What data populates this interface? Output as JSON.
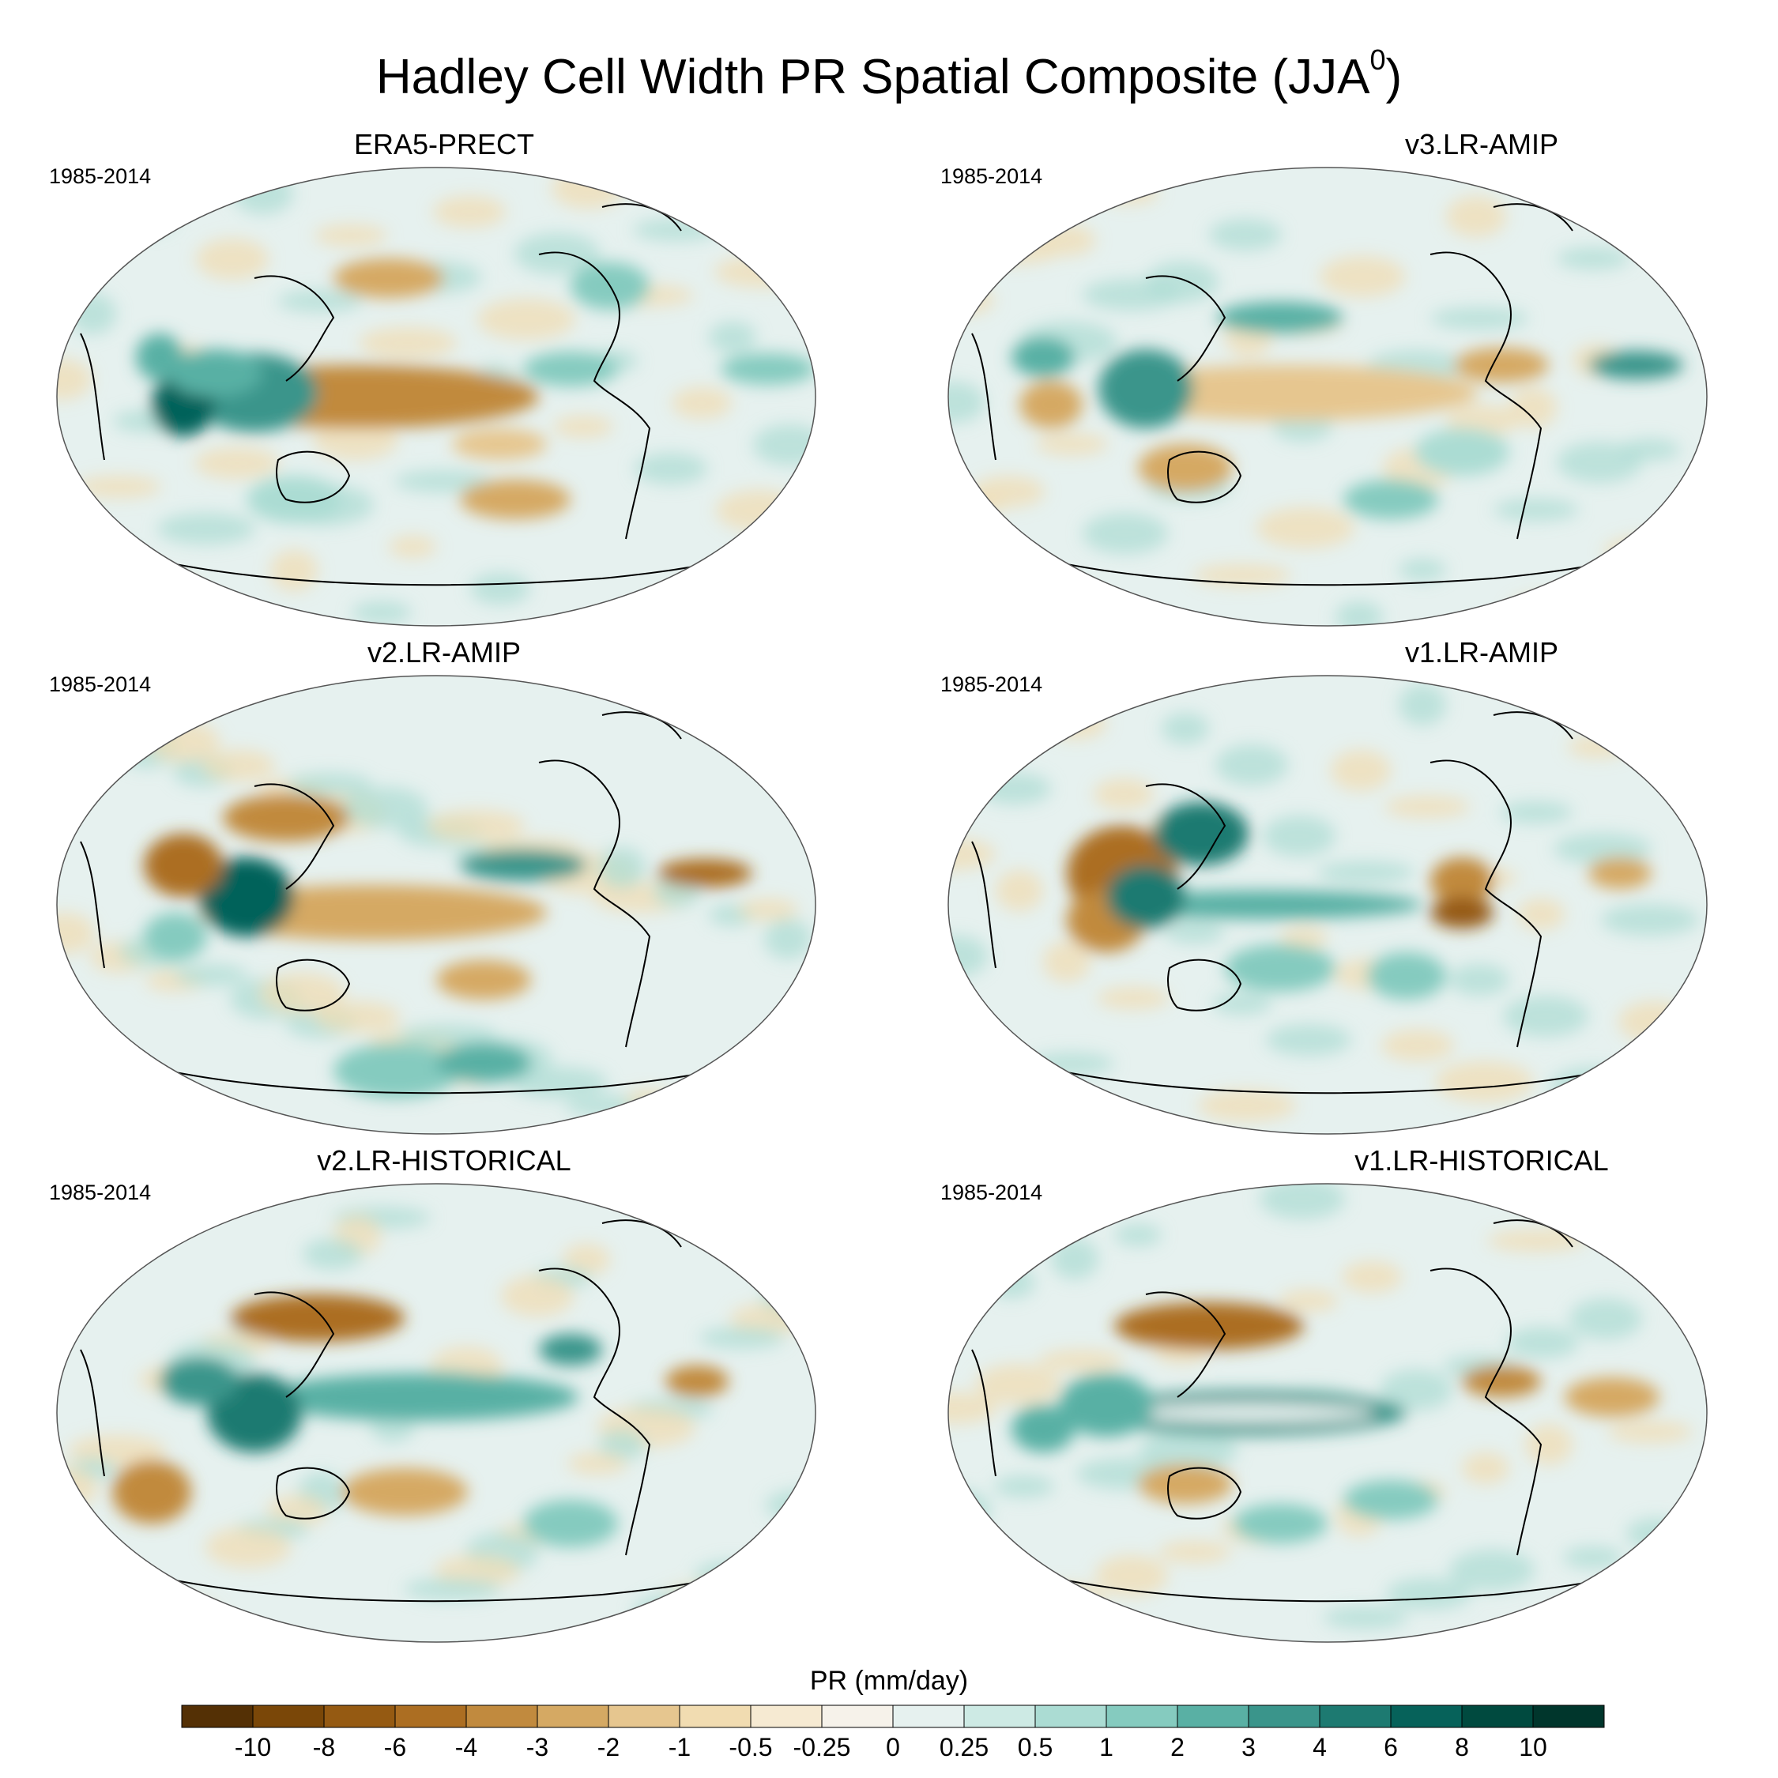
{
  "figure": {
    "title": "Hadley Cell Width PR Spatial Composite (JJA",
    "title_sup": "0",
    "title_suffix": ")"
  },
  "panels": [
    {
      "title": "ERA5-PRECT",
      "period": "1985-2014"
    },
    {
      "title": "v3.LR-AMIP",
      "period": "1985-2014"
    },
    {
      "title": "v2.LR-AMIP",
      "period": "1985-2014"
    },
    {
      "title": "v1.LR-AMIP",
      "period": "1985-2014"
    },
    {
      "title": "v2.LR-HISTORICAL",
      "period": "1985-2014"
    },
    {
      "title": "v1.LR-HISTORICAL",
      "period": "1985-2014"
    }
  ],
  "colorbar": {
    "label": "PR (mm/day)",
    "levels": [
      "-10",
      "-8",
      "-6",
      "-4",
      "-3",
      "-2",
      "-1",
      "-0.5",
      "-0.25",
      "0",
      "0.25",
      "0.5",
      "1",
      "2",
      "3",
      "4",
      "6",
      "8",
      "10"
    ],
    "colors": [
      "#543005",
      "#7a4708",
      "#955a12",
      "#ac6e22",
      "#c18a3e",
      "#d5a963",
      "#e6c68f",
      "#f1dcb1",
      "#f6ead2",
      "#f6f2ea",
      "#e6f1ef",
      "#cdeae4",
      "#abdcd3",
      "#85cbbf",
      "#59b0a4",
      "#3a958b",
      "#1d7a71",
      "#06625a",
      "#004a3f",
      "#00362c"
    ]
  }
}
